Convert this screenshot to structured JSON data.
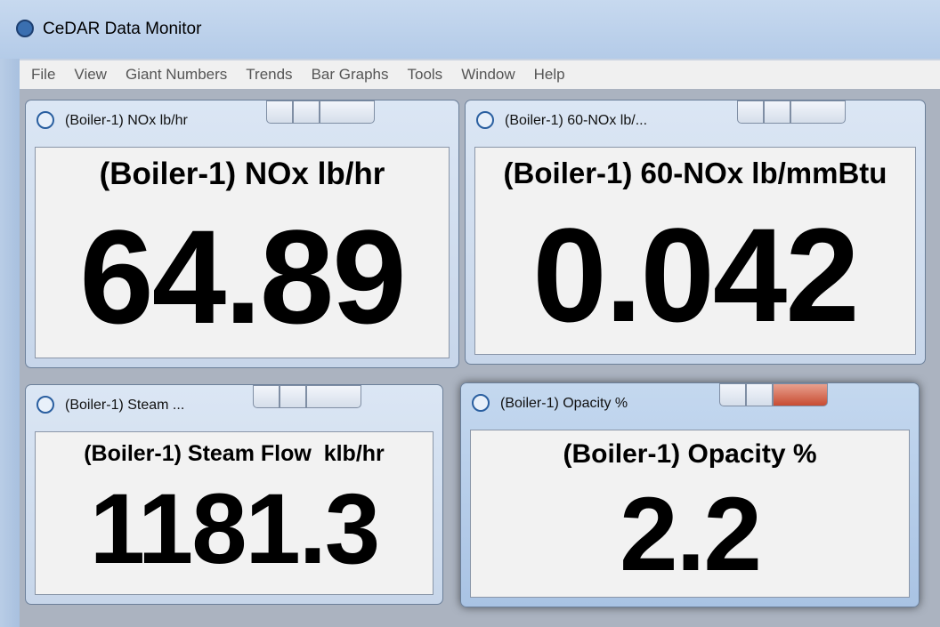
{
  "app": {
    "title": "CeDAR Data Monitor",
    "menu": [
      "File",
      "View",
      "Giant Numbers",
      "Trends",
      "Bar Graphs",
      "Tools",
      "Window",
      "Help"
    ]
  },
  "windows": [
    {
      "title": "(Boiler-1) NOx lb/hr",
      "heading": "(Boiler-1) NOx lb/hr",
      "value": "64.89"
    },
    {
      "title": "(Boiler-1) 60-NOx lb/...",
      "heading": "(Boiler-1) 60-NOx lb/mmBtu",
      "value": "0.042"
    },
    {
      "title": "(Boiler-1) Steam ...",
      "heading": "(Boiler-1) Steam Flow  klb/hr",
      "value": "1181.3"
    },
    {
      "title": "(Boiler-1) Opacity %",
      "heading": "(Boiler-1) Opacity %",
      "value": "2.2"
    }
  ]
}
